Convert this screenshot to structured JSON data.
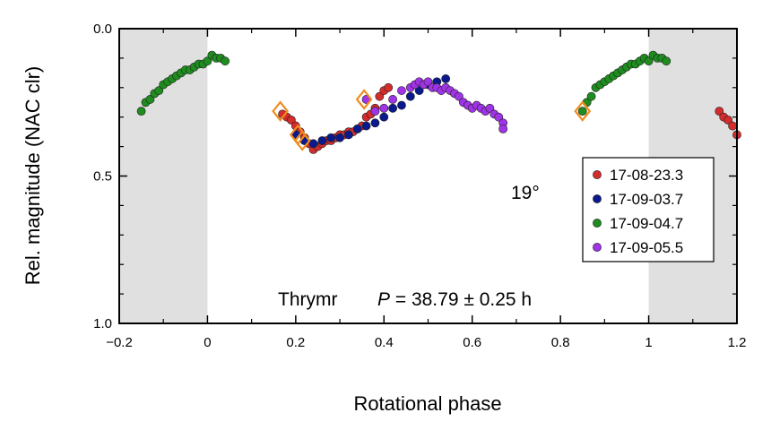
{
  "chart_data": {
    "type": "scatter",
    "xlabel": "Rotational phase",
    "ylabel": "Rel. magnitude (NAC clr)",
    "xlim": [
      -0.2,
      1.2
    ],
    "ylim": [
      0.0,
      1.0
    ],
    "y_inverted": true,
    "x_ticks": [
      -0.2,
      0,
      0.2,
      0.4,
      0.6,
      0.8,
      1,
      1.2
    ],
    "x_tick_labels": [
      "−0.2",
      "0",
      "0.2",
      "0.4",
      "0.6",
      "0.8",
      "1",
      "1.2"
    ],
    "y_ticks": [
      0.0,
      0.5,
      1.0
    ],
    "y_tick_labels": [
      "0.0",
      "0.5",
      "1.0"
    ],
    "shaded_x_ranges": [
      [
        -0.2,
        0
      ],
      [
        1,
        1.2
      ]
    ],
    "shade_color": "#e0e0e0",
    "annotations": {
      "target": "Thrymr",
      "period_symbol": "P",
      "period_value": " = 38.79 ± 0.25 h",
      "phase_angle": "19°"
    },
    "legend_position": "right",
    "series": [
      {
        "name": "17-08-23.3",
        "color": "#d42c2c",
        "points": [
          [
            0.17,
            0.29
          ],
          [
            0.18,
            0.3
          ],
          [
            0.19,
            0.31
          ],
          [
            0.2,
            0.33
          ],
          [
            0.21,
            0.35
          ],
          [
            0.22,
            0.37
          ],
          [
            0.23,
            0.39
          ],
          [
            0.24,
            0.41
          ],
          [
            0.25,
            0.4
          ],
          [
            0.26,
            0.39
          ],
          [
            0.27,
            0.38
          ],
          [
            0.28,
            0.38
          ],
          [
            0.29,
            0.37
          ],
          [
            0.3,
            0.36
          ],
          [
            0.31,
            0.36
          ],
          [
            0.32,
            0.35
          ],
          [
            0.33,
            0.35
          ],
          [
            0.34,
            0.34
          ],
          [
            0.35,
            0.33
          ],
          [
            0.36,
            0.3
          ],
          [
            0.37,
            0.29
          ],
          [
            0.38,
            0.27
          ],
          [
            0.39,
            0.23
          ],
          [
            0.4,
            0.21
          ],
          [
            0.41,
            0.2
          ],
          [
            1.16,
            0.28
          ],
          [
            1.17,
            0.3
          ],
          [
            1.18,
            0.31
          ],
          [
            1.19,
            0.33
          ],
          [
            1.2,
            0.36
          ]
        ]
      },
      {
        "name": "17-09-03.7",
        "color": "#0a1a8c",
        "points": [
          [
            0.2,
            0.36
          ],
          [
            0.22,
            0.38
          ],
          [
            0.24,
            0.39
          ],
          [
            0.26,
            0.38
          ],
          [
            0.28,
            0.37
          ],
          [
            0.3,
            0.37
          ],
          [
            0.32,
            0.36
          ],
          [
            0.34,
            0.34
          ],
          [
            0.36,
            0.33
          ],
          [
            0.38,
            0.32
          ],
          [
            0.4,
            0.3
          ],
          [
            0.42,
            0.27
          ],
          [
            0.44,
            0.26
          ],
          [
            0.46,
            0.23
          ],
          [
            0.48,
            0.21
          ],
          [
            0.5,
            0.19
          ],
          [
            0.52,
            0.18
          ],
          [
            0.54,
            0.17
          ]
        ]
      },
      {
        "name": "17-09-04.7",
        "color": "#1e8c1e",
        "points": [
          [
            -0.15,
            0.28
          ],
          [
            -0.14,
            0.25
          ],
          [
            -0.13,
            0.24
          ],
          [
            -0.12,
            0.22
          ],
          [
            -0.11,
            0.21
          ],
          [
            -0.1,
            0.19
          ],
          [
            -0.09,
            0.18
          ],
          [
            -0.08,
            0.17
          ],
          [
            -0.07,
            0.16
          ],
          [
            -0.06,
            0.15
          ],
          [
            -0.05,
            0.14
          ],
          [
            -0.04,
            0.14
          ],
          [
            -0.03,
            0.13
          ],
          [
            -0.02,
            0.12
          ],
          [
            -0.01,
            0.12
          ],
          [
            0.0,
            0.11
          ],
          [
            0.01,
            0.09
          ],
          [
            0.02,
            0.1
          ],
          [
            0.03,
            0.1
          ],
          [
            0.04,
            0.11
          ],
          [
            0.85,
            0.28
          ],
          [
            0.86,
            0.25
          ],
          [
            0.87,
            0.23
          ],
          [
            0.88,
            0.2
          ],
          [
            0.89,
            0.19
          ],
          [
            0.9,
            0.18
          ],
          [
            0.91,
            0.17
          ],
          [
            0.92,
            0.16
          ],
          [
            0.93,
            0.15
          ],
          [
            0.94,
            0.14
          ],
          [
            0.95,
            0.13
          ],
          [
            0.96,
            0.12
          ],
          [
            0.97,
            0.12
          ],
          [
            0.98,
            0.11
          ],
          [
            0.99,
            0.1
          ],
          [
            1.0,
            0.11
          ],
          [
            1.01,
            0.09
          ],
          [
            1.02,
            0.1
          ],
          [
            1.03,
            0.1
          ],
          [
            1.04,
            0.11
          ]
        ]
      },
      {
        "name": "17-09-05.5",
        "color": "#a033e6",
        "points": [
          [
            0.36,
            0.24
          ],
          [
            0.38,
            0.28
          ],
          [
            0.4,
            0.27
          ],
          [
            0.42,
            0.24
          ],
          [
            0.44,
            0.21
          ],
          [
            0.46,
            0.2
          ],
          [
            0.47,
            0.19
          ],
          [
            0.48,
            0.18
          ],
          [
            0.49,
            0.19
          ],
          [
            0.5,
            0.18
          ],
          [
            0.51,
            0.2
          ],
          [
            0.52,
            0.2
          ],
          [
            0.53,
            0.21
          ],
          [
            0.54,
            0.2
          ],
          [
            0.55,
            0.21
          ],
          [
            0.56,
            0.22
          ],
          [
            0.57,
            0.23
          ],
          [
            0.58,
            0.25
          ],
          [
            0.59,
            0.26
          ],
          [
            0.6,
            0.27
          ],
          [
            0.61,
            0.26
          ],
          [
            0.62,
            0.27
          ],
          [
            0.63,
            0.28
          ],
          [
            0.64,
            0.27
          ],
          [
            0.65,
            0.29
          ],
          [
            0.66,
            0.3
          ],
          [
            0.67,
            0.32
          ],
          [
            0.67,
            0.34
          ]
        ]
      }
    ],
    "highlighted_points": {
      "marker": "diamond",
      "color": "#f08c1e",
      "points": [
        [
          0.165,
          0.28
        ],
        [
          0.205,
          0.36
        ],
        [
          0.215,
          0.38
        ],
        [
          0.355,
          0.24
        ],
        [
          0.85,
          0.28
        ]
      ]
    }
  }
}
